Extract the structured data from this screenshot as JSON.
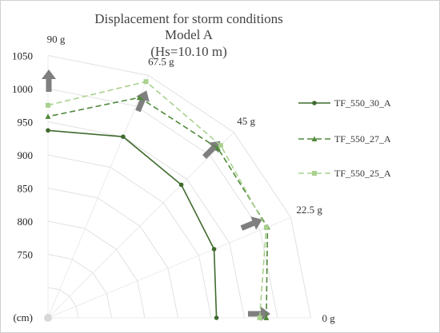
{
  "chart_data": {
    "type": "radar",
    "title_lines": [
      "Displacement for storm conditions",
      "Model A",
      "(Hs=10.10 m)"
    ],
    "unit_label": "(cm)",
    "r_ticks": [
      750,
      800,
      850,
      900,
      950,
      1000,
      1050
    ],
    "rlim": [
      700,
      1050
    ],
    "directions": [
      "0 g",
      "22.5 g",
      "45 g",
      "67.5 g",
      "90 g"
    ],
    "direction_angles_deg": [
      0,
      22.5,
      45,
      67.5,
      90
    ],
    "series": [
      {
        "name": "TF_550_30_A",
        "color": "#3f6b2e",
        "dash": "",
        "marker": "circle",
        "values": [
          908,
          925,
          938,
          950,
          937
        ]
      },
      {
        "name": "TF_550_27_A",
        "color": "#4f8a3a",
        "dash": "7,4",
        "marker": "triangle",
        "values": [
          983,
          1012,
          1016,
          1014,
          958
        ]
      },
      {
        "name": "TF_550_25_A",
        "color": "#a9d18e",
        "dash": "7,4",
        "marker": "square",
        "values": [
          973,
          1010,
          1022,
          1040,
          975
        ]
      }
    ],
    "grid": true,
    "legend_position": "right"
  }
}
